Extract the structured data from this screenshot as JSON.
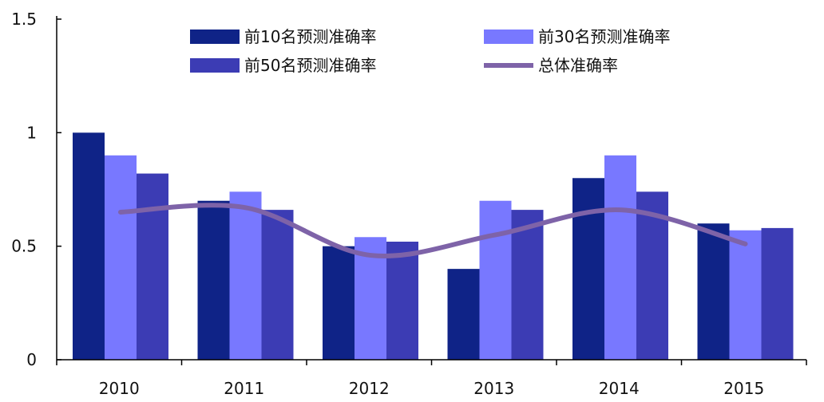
{
  "chart_data": {
    "type": "bar",
    "categories": [
      "2010",
      "2011",
      "2012",
      "2013",
      "2014",
      "2015"
    ],
    "ylim": [
      0,
      1.5
    ],
    "yticks": [
      "0",
      "0.5",
      "1",
      "1.5"
    ],
    "grid": false,
    "legend_position": "top",
    "series": [
      {
        "name": "前10名预测准确率",
        "kind": "bar",
        "color": "#0F2387",
        "values": [
          1.0,
          0.7,
          0.5,
          0.4,
          0.8,
          0.6
        ]
      },
      {
        "name": "前30名预测准确率",
        "kind": "bar",
        "color": "#7878FF",
        "values": [
          0.9,
          0.74,
          0.54,
          0.7,
          0.9,
          0.57
        ]
      },
      {
        "name": "前50名预测准确率",
        "kind": "bar",
        "color": "#3C3CB4",
        "values": [
          0.82,
          0.66,
          0.52,
          0.66,
          0.74,
          0.58
        ]
      },
      {
        "name": "总体准确率",
        "kind": "line",
        "color": "#7E63A8",
        "values": [
          0.65,
          0.67,
          0.46,
          0.55,
          0.66,
          0.51
        ]
      }
    ]
  }
}
